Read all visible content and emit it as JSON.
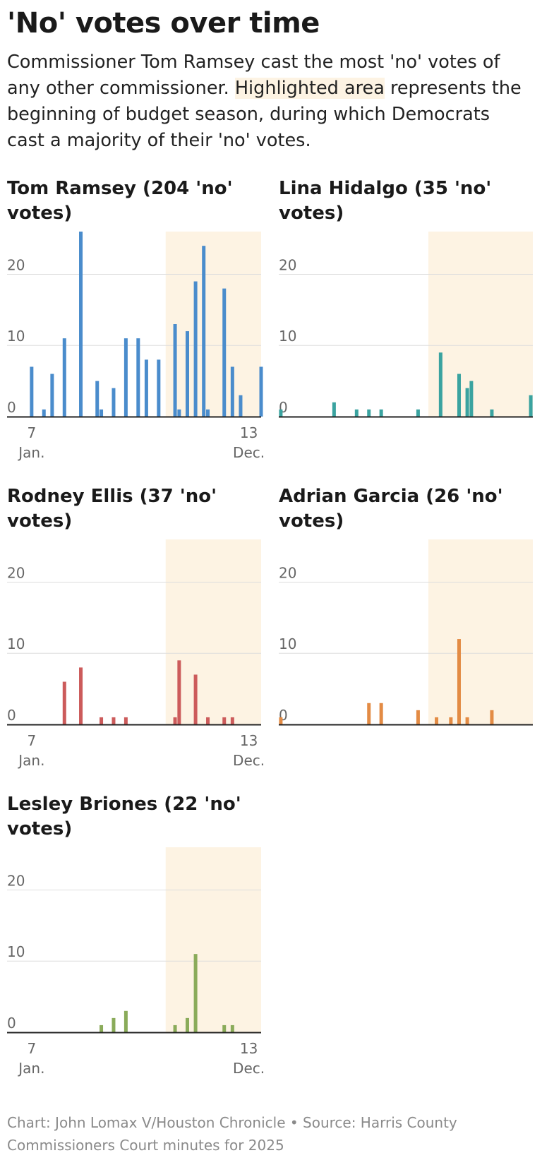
{
  "title": "'No' votes over time",
  "subtitle": {
    "before": "Commissioner Tom Ramsey cast the most 'no' votes of any other commissioner. ",
    "highlight": "Highlighted area",
    "after": " represents the beginning of budget season, during which Democrats cast a majority of their 'no' votes."
  },
  "footer": "Chart: John Lomax V/Houston Chronicle • Source: Harris County Commissioners Court minutes for 2025",
  "colors": {
    "highlight_band": "#fdf3e3",
    "gridline": "#dddddd",
    "baseline": "#222222",
    "tick_text": "#666666"
  },
  "chart_data": [
    {
      "type": "bar",
      "title": "Tom Ramsey (204 'no' votes)",
      "color": "#4a8ccc",
      "ylim": [
        0,
        26
      ],
      "yticks": [
        0,
        10,
        20
      ],
      "xlim": [
        0,
        62
      ],
      "x_tick_labels": [
        {
          "value": 6,
          "day": "7",
          "month": "Jan."
        },
        {
          "value": 59,
          "day": "13",
          "month": "Dec."
        }
      ],
      "highlight_range": [
        38.7,
        62
      ],
      "bars": [
        {
          "x": 6,
          "y": 7
        },
        {
          "x": 9,
          "y": 1
        },
        {
          "x": 11,
          "y": 6
        },
        {
          "x": 14,
          "y": 11
        },
        {
          "x": 18,
          "y": 26
        },
        {
          "x": 22,
          "y": 5
        },
        {
          "x": 23,
          "y": 1
        },
        {
          "x": 26,
          "y": 4
        },
        {
          "x": 29,
          "y": 11
        },
        {
          "x": 32,
          "y": 11
        },
        {
          "x": 34,
          "y": 8
        },
        {
          "x": 37,
          "y": 8
        },
        {
          "x": 41,
          "y": 13
        },
        {
          "x": 42,
          "y": 1
        },
        {
          "x": 44,
          "y": 12
        },
        {
          "x": 46,
          "y": 19
        },
        {
          "x": 48,
          "y": 24
        },
        {
          "x": 49,
          "y": 1
        },
        {
          "x": 53,
          "y": 18
        },
        {
          "x": 55,
          "y": 7
        },
        {
          "x": 57,
          "y": 3
        },
        {
          "x": 62,
          "y": 7
        }
      ]
    },
    {
      "type": "bar",
      "title": "Lina Hidalgo (35 'no' votes)",
      "color": "#3aa3a0",
      "ylim": [
        0,
        26
      ],
      "yticks": [
        0,
        10,
        20
      ],
      "xlim": [
        0,
        62
      ],
      "x_tick_labels": [],
      "highlight_range": [
        36.5,
        62
      ],
      "bars": [
        {
          "x": 0.5,
          "y": 1
        },
        {
          "x": 13.5,
          "y": 2
        },
        {
          "x": 19,
          "y": 1
        },
        {
          "x": 22,
          "y": 1
        },
        {
          "x": 25,
          "y": 1
        },
        {
          "x": 34,
          "y": 1
        },
        {
          "x": 39.5,
          "y": 9
        },
        {
          "x": 44,
          "y": 6
        },
        {
          "x": 46,
          "y": 4
        },
        {
          "x": 47,
          "y": 5
        },
        {
          "x": 52,
          "y": 1
        },
        {
          "x": 61.5,
          "y": 3
        }
      ]
    },
    {
      "type": "bar",
      "title": "Rodney Ellis (37 'no' votes)",
      "color": "#cc5b5b",
      "ylim": [
        0,
        26
      ],
      "yticks": [
        0,
        10,
        20
      ],
      "xlim": [
        0,
        62
      ],
      "x_tick_labels": [
        {
          "value": 6,
          "day": "7",
          "month": "Jan."
        },
        {
          "value": 59,
          "day": "13",
          "month": "Dec."
        }
      ],
      "highlight_range": [
        38.7,
        62
      ],
      "bars": [
        {
          "x": 14,
          "y": 6
        },
        {
          "x": 18,
          "y": 8
        },
        {
          "x": 23,
          "y": 1
        },
        {
          "x": 26,
          "y": 1
        },
        {
          "x": 29,
          "y": 1
        },
        {
          "x": 41,
          "y": 1
        },
        {
          "x": 42,
          "y": 9
        },
        {
          "x": 46,
          "y": 7
        },
        {
          "x": 49,
          "y": 1
        },
        {
          "x": 53,
          "y": 1
        },
        {
          "x": 55,
          "y": 1
        }
      ]
    },
    {
      "type": "bar",
      "title": "Adrian Garcia (26 'no' votes)",
      "color": "#e38b44",
      "ylim": [
        0,
        26
      ],
      "yticks": [
        0,
        10,
        20
      ],
      "xlim": [
        0,
        62
      ],
      "x_tick_labels": [],
      "highlight_range": [
        36.5,
        62
      ],
      "bars": [
        {
          "x": 0.5,
          "y": 1
        },
        {
          "x": 22,
          "y": 3
        },
        {
          "x": 25,
          "y": 3
        },
        {
          "x": 34,
          "y": 2
        },
        {
          "x": 38.5,
          "y": 1
        },
        {
          "x": 42,
          "y": 1
        },
        {
          "x": 44,
          "y": 12
        },
        {
          "x": 46,
          "y": 1
        },
        {
          "x": 52,
          "y": 2
        }
      ]
    },
    {
      "type": "bar",
      "title": "Lesley Briones (22 'no' votes)",
      "color": "#8aab5a",
      "ylim": [
        0,
        26
      ],
      "yticks": [
        0,
        10,
        20
      ],
      "xlim": [
        0,
        62
      ],
      "x_tick_labels": [
        {
          "value": 6,
          "day": "7",
          "month": "Jan."
        },
        {
          "value": 59,
          "day": "13",
          "month": "Dec."
        }
      ],
      "highlight_range": [
        38.7,
        62
      ],
      "bars": [
        {
          "x": 23,
          "y": 1
        },
        {
          "x": 26,
          "y": 2
        },
        {
          "x": 29,
          "y": 3
        },
        {
          "x": 41,
          "y": 1
        },
        {
          "x": 44,
          "y": 2
        },
        {
          "x": 46,
          "y": 11
        },
        {
          "x": 53,
          "y": 1
        },
        {
          "x": 55,
          "y": 1
        }
      ]
    }
  ]
}
